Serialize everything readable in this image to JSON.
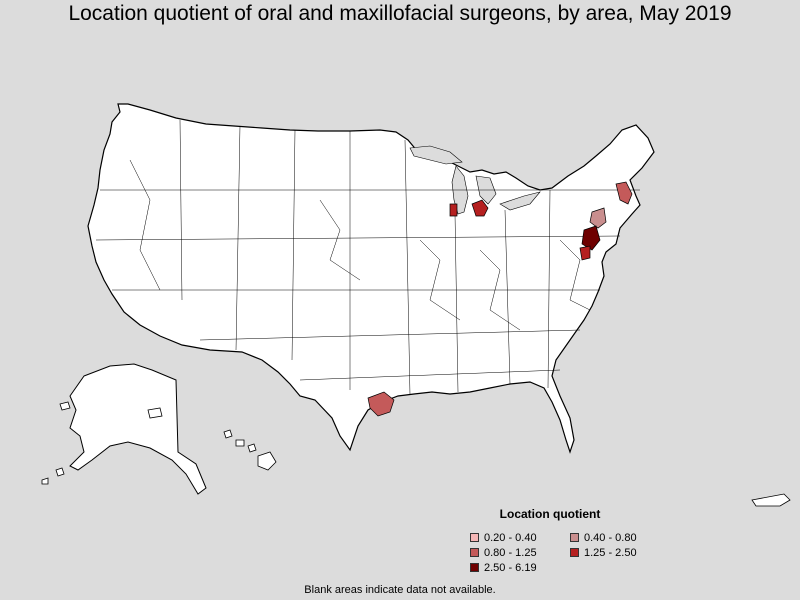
{
  "title": "Location quotient of oral and maxillofacial surgeons, by area, May 2019",
  "legend": {
    "title": "Location quotient",
    "items": [
      {
        "label": "0.20 - 0.40",
        "color": "#f4b6b6"
      },
      {
        "label": "0.40 - 0.80",
        "color": "#c98e8e"
      },
      {
        "label": "0.80 - 1.25",
        "color": "#c45a5a"
      },
      {
        "label": "1.25 - 2.50",
        "color": "#b52020"
      },
      {
        "label": "2.50 - 6.19",
        "color": "#6e0000"
      }
    ]
  },
  "footnote": "Blank areas indicate data not available.",
  "colors": {
    "background": "#dcdcdc",
    "land": "#ffffff",
    "border": "#000000"
  },
  "highlighted_areas": [
    {
      "region": "Houston area, TX",
      "class": "0.80 - 1.25"
    },
    {
      "region": "Chicago area, IL",
      "class": "1.25 - 2.50"
    },
    {
      "region": "Detroit area, MI",
      "class": "1.25 - 2.50"
    },
    {
      "region": "Boston area, MA",
      "class": "0.80 - 1.25"
    },
    {
      "region": "New York area",
      "class": "0.40 - 0.80"
    },
    {
      "region": "Philadelphia area, PA",
      "class": "2.50 - 6.19"
    },
    {
      "region": "Baltimore area, MD",
      "class": "1.25 - 2.50"
    }
  ]
}
